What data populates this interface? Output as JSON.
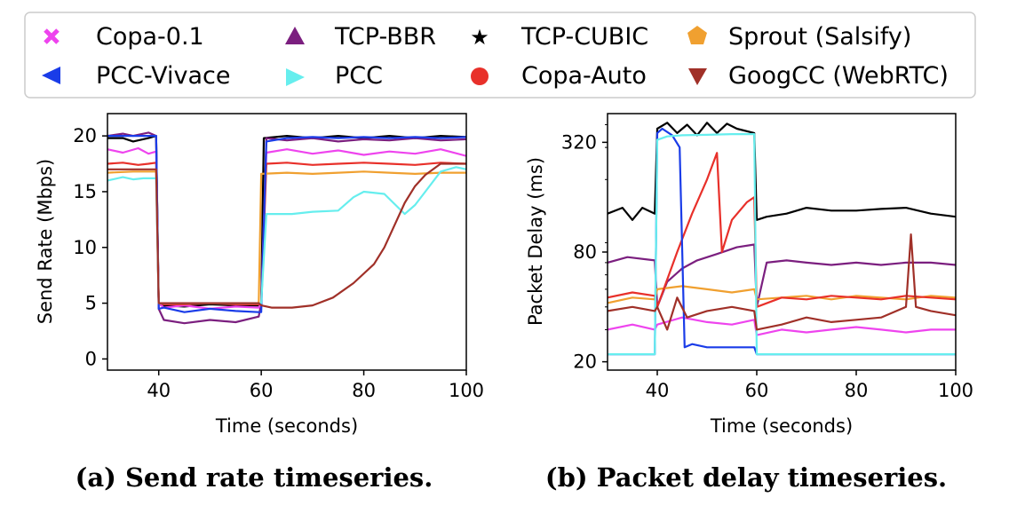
{
  "legend": [
    {
      "name": "Copa-0.1",
      "color": "#ee44ee",
      "marker": "x-marker-icon"
    },
    {
      "name": "TCP-BBR",
      "color": "#7b1f7f",
      "marker": "triangle-up-marker-icon"
    },
    {
      "name": "TCP-CUBIC",
      "color": "#000000",
      "marker": "star-marker-icon"
    },
    {
      "name": "Sprout (Salsify)",
      "color": "#f0a030",
      "marker": "pentagon-marker-icon"
    },
    {
      "name": "PCC-Vivace",
      "color": "#1a3ce8",
      "marker": "triangle-left-marker-icon"
    },
    {
      "name": "PCC",
      "color": "#66eeee",
      "marker": "triangle-right-marker-icon"
    },
    {
      "name": "Copa-Auto",
      "color": "#e8302a",
      "marker": "circle-marker-icon"
    },
    {
      "name": "GoogCC (WebRTC)",
      "color": "#a03028",
      "marker": "triangle-down-marker-icon"
    }
  ],
  "chart_data": [
    {
      "type": "line",
      "caption": "(a) Send rate timeseries.",
      "xlabel": "Time (seconds)",
      "ylabel": "Send Rate (Mbps)",
      "xlim": [
        30,
        100
      ],
      "ylim": [
        -1,
        22
      ],
      "xticks": [
        "40",
        "60",
        "80",
        "100"
      ],
      "yticks": [
        "0",
        "5",
        "10",
        "15",
        "20"
      ],
      "series": [
        {
          "name": "TCP-CUBIC",
          "x": [
            30,
            33,
            35,
            38,
            39.5,
            40,
            40.5,
            45,
            50,
            55,
            59.5,
            60,
            60.5,
            65,
            70,
            75,
            80,
            85,
            90,
            95,
            100
          ],
          "y": [
            19.8,
            19.8,
            19.5,
            19.8,
            20,
            5,
            4.8,
            4.7,
            4.9,
            4.8,
            4.8,
            5,
            19.8,
            20,
            19.8,
            20,
            19.8,
            20,
            19.8,
            20,
            19.9
          ]
        },
        {
          "name": "TCP-BBR",
          "x": [
            30,
            33,
            35,
            38,
            39.5,
            40,
            41,
            45,
            50,
            55,
            59.5,
            60,
            61,
            65,
            70,
            75,
            80,
            85,
            90,
            95,
            100
          ],
          "y": [
            20,
            20.2,
            20,
            20.3,
            20,
            4.5,
            3.5,
            3.2,
            3.5,
            3.3,
            3.8,
            5,
            19.8,
            19.6,
            19.8,
            19.5,
            19.7,
            19.6,
            19.8,
            19.6,
            19.7
          ]
        },
        {
          "name": "Copa-0.1",
          "x": [
            30,
            33,
            36,
            38,
            39.5,
            40,
            41,
            45,
            50,
            55,
            59.5,
            60,
            61,
            65,
            70,
            75,
            80,
            85,
            90,
            95,
            100
          ],
          "y": [
            18.8,
            18.5,
            18.9,
            18.4,
            18.6,
            5,
            4.6,
            4.8,
            4.5,
            4.7,
            4.6,
            5,
            18.5,
            18.8,
            18.4,
            18.7,
            18.3,
            18.6,
            18.4,
            18.8,
            18.2
          ]
        },
        {
          "name": "Copa-Auto",
          "x": [
            30,
            33,
            36,
            38,
            39.5,
            40,
            41,
            45,
            50,
            55,
            59.5,
            60,
            61,
            65,
            70,
            75,
            80,
            85,
            90,
            95,
            100
          ],
          "y": [
            17.5,
            17.6,
            17.4,
            17.5,
            17.6,
            5,
            4.9,
            4.9,
            5,
            4.9,
            4.9,
            5,
            17.5,
            17.6,
            17.4,
            17.5,
            17.6,
            17.5,
            17.4,
            17.6,
            17.5
          ]
        },
        {
          "name": "Sprout (Salsify)",
          "x": [
            30,
            35,
            39.5,
            40,
            42,
            48,
            54,
            59.5,
            60,
            65,
            70,
            75,
            80,
            85,
            90,
            95,
            100
          ],
          "y": [
            16.7,
            16.8,
            16.8,
            5,
            5,
            5,
            5,
            5,
            16.6,
            16.7,
            16.6,
            16.7,
            16.8,
            16.7,
            16.6,
            16.7,
            16.7
          ]
        },
        {
          "name": "PCC-Vivace",
          "x": [
            30,
            33,
            36,
            39.5,
            40,
            41,
            45,
            50,
            55,
            59.5,
            60,
            61,
            65,
            70,
            75,
            80,
            85,
            90,
            95,
            100
          ],
          "y": [
            20,
            20,
            20,
            20,
            4.5,
            4.6,
            4.2,
            4.5,
            4.3,
            4.2,
            4.2,
            19.5,
            19.8,
            19.9,
            19.8,
            19.9,
            19.8,
            19.9,
            19.8,
            19.9
          ]
        },
        {
          "name": "PCC",
          "x": [
            30,
            33,
            35,
            37,
            39.5,
            40,
            41,
            45,
            50,
            55,
            59.5,
            60,
            61,
            63,
            66,
            70,
            75,
            78,
            80,
            84,
            88,
            90,
            92,
            95,
            98,
            100
          ],
          "y": [
            16,
            16.3,
            16.1,
            16.2,
            16.2,
            5,
            5,
            5,
            5,
            5,
            5,
            5,
            13,
            13,
            13,
            13.2,
            13.3,
            14.5,
            15,
            14.8,
            13,
            13.8,
            15,
            16.8,
            17.2,
            17
          ]
        },
        {
          "name": "GoogCC (WebRTC)",
          "x": [
            30,
            35,
            39.5,
            40,
            45,
            50,
            55,
            59.5,
            60,
            62,
            66,
            70,
            74,
            78,
            82,
            84,
            86,
            88,
            90,
            92,
            95,
            98,
            100
          ],
          "y": [
            17,
            17,
            17,
            5,
            5,
            5,
            5,
            5,
            4.8,
            4.6,
            4.6,
            4.8,
            5.5,
            6.8,
            8.5,
            10,
            12,
            14,
            15.5,
            16.5,
            17.5,
            17.5,
            17.5
          ]
        }
      ]
    },
    {
      "type": "line",
      "caption": "(b) Packet delay timeseries.",
      "xlabel": "Time (seconds)",
      "ylabel": "Packet Delay (ms)",
      "xlim": [
        30,
        100
      ],
      "yscale": "log",
      "ylim": [
        18,
        460
      ],
      "xticks": [
        "40",
        "60",
        "80",
        "100"
      ],
      "yticks": [
        {
          "value": 20,
          "label": "20"
        },
        {
          "value": 80,
          "label": "80"
        },
        {
          "value": 320,
          "label": "320"
        }
      ],
      "series": [
        {
          "name": "TCP-CUBIC",
          "x": [
            30,
            33,
            35,
            37,
            39.5,
            40,
            42,
            44,
            46,
            48,
            50,
            52,
            54,
            56,
            59.5,
            60,
            62,
            66,
            70,
            75,
            80,
            85,
            90,
            95,
            100
          ],
          "y": [
            130,
            140,
            120,
            140,
            130,
            380,
            410,
            360,
            400,
            350,
            410,
            360,
            405,
            380,
            360,
            120,
            125,
            130,
            140,
            135,
            135,
            138,
            140,
            130,
            125
          ]
        },
        {
          "name": "TCP-BBR",
          "x": [
            30,
            34,
            39.5,
            40,
            42,
            45,
            48,
            52,
            56,
            59.5,
            60,
            62,
            66,
            70,
            75,
            80,
            85,
            90,
            95,
            100
          ],
          "y": [
            70,
            75,
            72,
            40,
            55,
            65,
            72,
            78,
            85,
            88,
            40,
            70,
            72,
            70,
            68,
            70,
            68,
            70,
            70,
            68
          ]
        },
        {
          "name": "Sprout (Salsify)",
          "x": [
            30,
            35,
            39.5,
            40,
            45,
            50,
            55,
            59.5,
            60,
            65,
            70,
            75,
            80,
            85,
            90,
            95,
            100
          ],
          "y": [
            42,
            45,
            44,
            50,
            52,
            50,
            48,
            50,
            44,
            45,
            46,
            44,
            46,
            45,
            44,
            46,
            45
          ]
        },
        {
          "name": "Copa-Auto",
          "x": [
            30,
            35,
            39.5,
            40,
            44,
            47,
            50,
            52,
            53,
            55,
            58,
            59.5,
            60,
            65,
            70,
            75,
            80,
            85,
            90,
            95,
            100
          ],
          "y": [
            45,
            48,
            46,
            40,
            80,
            130,
            200,
            280,
            80,
            120,
            150,
            160,
            40,
            45,
            44,
            46,
            45,
            44,
            46,
            45,
            44
          ]
        },
        {
          "name": "Copa-0.1",
          "x": [
            30,
            35,
            39.5,
            40,
            45,
            50,
            55,
            59.5,
            60,
            65,
            70,
            75,
            80,
            85,
            90,
            95,
            100
          ],
          "y": [
            30,
            32,
            30,
            32,
            35,
            33,
            32,
            34,
            28,
            30,
            29,
            30,
            31,
            30,
            29,
            30,
            30
          ]
        },
        {
          "name": "PCC-Vivace",
          "x": [
            30,
            35,
            39.5,
            40,
            41,
            43,
            44.5,
            45.5,
            47,
            50,
            55,
            59.5,
            60,
            65,
            70,
            75,
            80,
            85,
            90,
            95,
            100
          ],
          "y": [
            22,
            22,
            22,
            360,
            380,
            350,
            300,
            24,
            25,
            24,
            24,
            24,
            22,
            22,
            22,
            22,
            22,
            22,
            22,
            22,
            22
          ]
        },
        {
          "name": "PCC",
          "x": [
            30,
            35,
            39.5,
            40,
            42,
            45,
            50,
            55,
            59.5,
            60,
            65,
            70,
            75,
            80,
            85,
            90,
            95,
            100
          ],
          "y": [
            22,
            22,
            22,
            330,
            345,
            350,
            352,
            355,
            355,
            22,
            22,
            22,
            22,
            22,
            22,
            22,
            22,
            22
          ]
        },
        {
          "name": "GoogCC (WebRTC)",
          "x": [
            30,
            35,
            39.5,
            40,
            42,
            44,
            46,
            50,
            55,
            59.5,
            60,
            65,
            70,
            75,
            80,
            85,
            90,
            91,
            92,
            95,
            100
          ],
          "y": [
            38,
            40,
            38,
            40,
            30,
            45,
            35,
            38,
            40,
            38,
            30,
            32,
            35,
            33,
            34,
            35,
            40,
            100,
            40,
            38,
            36
          ]
        }
      ]
    }
  ]
}
